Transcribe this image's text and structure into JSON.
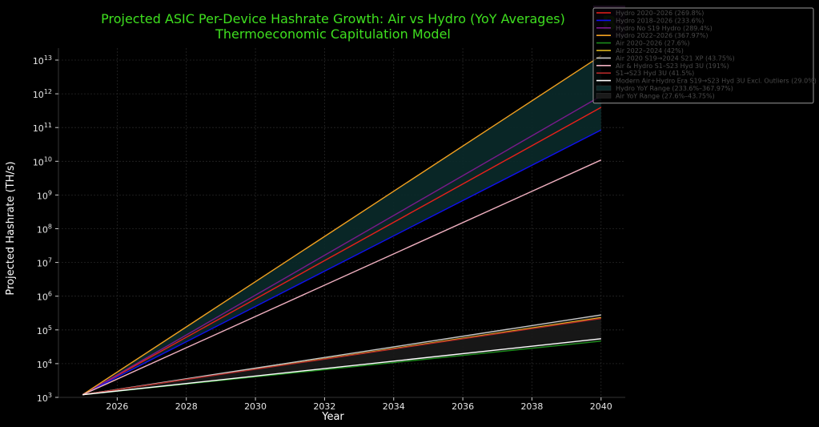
{
  "chart_data": {
    "type": "line",
    "title": "Projected ASIC Per-Device Hashrate Growth: Air vs Hydro (YoY Averages)",
    "subtitle": "Thermoeconomic Capitulation Model",
    "xlabel": "Year",
    "ylabel": "Projected Hashrate (TH/s)",
    "yscale": "log",
    "xlim": [
      2024.3,
      2040.7
    ],
    "ylim": [
      1000,
      15000000000000
    ],
    "x_ticks": [
      "2026",
      "2028",
      "2030",
      "2032",
      "2034",
      "2036",
      "2038",
      "2040"
    ],
    "x_tick_values": [
      2026,
      2028,
      2030,
      2032,
      2034,
      2036,
      2038,
      2040
    ],
    "y_ticks": [
      {
        "value": 1000,
        "base": "10",
        "exp": "3"
      },
      {
        "value": 10000,
        "base": "10",
        "exp": "4"
      },
      {
        "value": 100000,
        "base": "10",
        "exp": "5"
      },
      {
        "value": 1000000,
        "base": "10",
        "exp": "6"
      },
      {
        "value": 10000000,
        "base": "10",
        "exp": "7"
      },
      {
        "value": 100000000,
        "base": "10",
        "exp": "8"
      },
      {
        "value": 1000000000,
        "base": "10",
        "exp": "9"
      },
      {
        "value": 10000000000,
        "base": "10",
        "exp": "10"
      },
      {
        "value": 100000000000,
        "base": "10",
        "exp": "11"
      },
      {
        "value": 1000000000000,
        "base": "10",
        "exp": "12"
      },
      {
        "value": 10000000000000,
        "base": "10",
        "exp": "13"
      }
    ],
    "grid": true,
    "start_year": 2025,
    "end_year": 2040,
    "start_value": 1200,
    "series": [
      {
        "name": "Hydro 2020–2026 (269.8%)",
        "yoy_pct": 269.8,
        "color": "#e8201a"
      },
      {
        "name": "Hydro 2018–2026 (233.6%)",
        "yoy_pct": 233.6,
        "color": "#1010f0"
      },
      {
        "name": "Hydro No S19 Hydro (289.4%)",
        "yoy_pct": 289.4,
        "color": "#7a1a8c"
      },
      {
        "name": "Hydro 2022–2026 (367.97%)",
        "yoy_pct": 367.97,
        "color": "#f0a020"
      },
      {
        "name": "Air 2020–2026 (27.6%)",
        "yoy_pct": 27.6,
        "color": "#1a8a1a"
      },
      {
        "name": "Air 2022–2024 (42%)",
        "yoy_pct": 42,
        "color": "#e8c020"
      },
      {
        "name": "Air 2020 S19→2024 S21 XP (43.75%)",
        "yoy_pct": 43.75,
        "color": "#c8c8c8"
      },
      {
        "name": "Air & Hydro S1–S23 Hyd 3U (191%)",
        "yoy_pct": 191,
        "color": "#f0b0c0"
      },
      {
        "name": "S1→S23 Hyd 3U (41.5%)",
        "yoy_pct": 41.5,
        "color": "#b02828"
      },
      {
        "name": "Modern Air+Hydro Era S19→S23 Hyd 3U Excl. Outliers (29.0%)",
        "yoy_pct": 29.0,
        "color": "#ffffff"
      }
    ],
    "bands": [
      {
        "name": "Hydro YoY Range (233.6%–367.97%)",
        "low_pct": 233.6,
        "high_pct": 367.97,
        "color": "#0a2a2a"
      },
      {
        "name": "Air YoY Range (27.6%–43.75%)",
        "low_pct": 27.6,
        "high_pct": 43.75,
        "color": "#1a1a1a"
      }
    ],
    "legend_position": "top-right"
  },
  "colors": {
    "background": "#000000",
    "title": "#3fe01f",
    "text": "#e6e6e6",
    "grid": "#2a2a2a"
  }
}
